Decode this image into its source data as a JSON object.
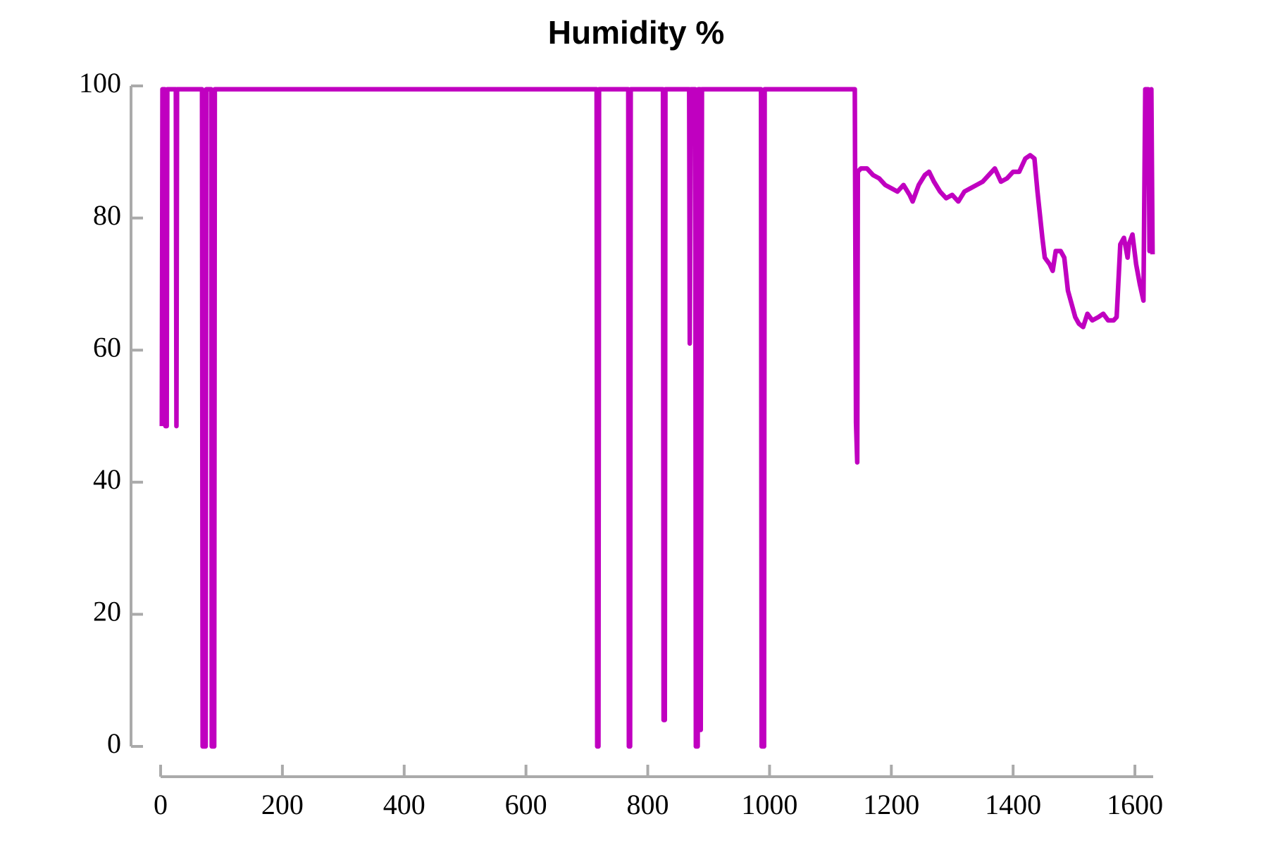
{
  "chart_data": {
    "type": "line",
    "title": "Humidity %",
    "x": [
      2,
      3,
      7,
      8,
      10,
      11,
      25,
      26,
      27,
      68,
      69,
      74,
      75,
      83,
      84,
      88,
      89,
      716,
      717,
      719,
      720,
      768,
      769,
      771,
      772,
      825,
      826,
      828,
      829,
      868,
      869,
      871,
      878,
      879,
      882,
      883,
      886,
      887,
      889,
      986,
      987,
      991,
      992,
      1140,
      1142,
      1144,
      1145,
      1150,
      1160,
      1170,
      1180,
      1190,
      1200,
      1210,
      1220,
      1230,
      1235,
      1245,
      1255,
      1262,
      1270,
      1280,
      1290,
      1300,
      1310,
      1320,
      1330,
      1340,
      1350,
      1360,
      1370,
      1380,
      1390,
      1400,
      1410,
      1420,
      1428,
      1435,
      1440,
      1448,
      1452,
      1460,
      1465,
      1470,
      1478,
      1484,
      1490,
      1496,
      1502,
      1508,
      1515,
      1522,
      1530,
      1540,
      1548,
      1556,
      1565,
      1570,
      1576,
      1582,
      1588,
      1590,
      1596,
      1602,
      1608,
      1614,
      1617,
      1622,
      1624,
      1627,
      1629
    ],
    "values": [
      48.5,
      99.5,
      99.5,
      48.5,
      48.5,
      99.5,
      99.5,
      48.5,
      99.5,
      99.5,
      0,
      0,
      99.5,
      99.5,
      0,
      0,
      99.5,
      99.5,
      0,
      0,
      99.5,
      99.5,
      0,
      0,
      99.5,
      99.5,
      4,
      4,
      99.5,
      99.5,
      61,
      99.5,
      99.5,
      0,
      0,
      99.5,
      99.5,
      2.5,
      99.5,
      99.5,
      0,
      0,
      99.5,
      99.5,
      49,
      43,
      87,
      87.5,
      87.5,
      86.5,
      86,
      85,
      84.5,
      84,
      85,
      83.5,
      82.5,
      85,
      86.5,
      87,
      85.5,
      84,
      83,
      83.5,
      82.5,
      84,
      84.5,
      85,
      85.5,
      86.5,
      87.5,
      85.5,
      86,
      87,
      87,
      89,
      89.5,
      89,
      84,
      77,
      74,
      73,
      72,
      75,
      75,
      74,
      69,
      67,
      65,
      64,
      63.5,
      65.5,
      64.5,
      65,
      65.5,
      64.5,
      64.5,
      65,
      76,
      77,
      74,
      76,
      77.5,
      73,
      70,
      67.5,
      99.5,
      99.5,
      75,
      99.5,
      74.5
    ],
    "color": "#c000c0",
    "xlim": [
      0,
      1630
    ],
    "ylim": [
      0,
      100
    ],
    "xticks": [
      0,
      200,
      400,
      600,
      800,
      1000,
      1200,
      1400,
      1600
    ],
    "yticks": [
      0,
      20,
      40,
      60,
      80,
      100
    ]
  }
}
